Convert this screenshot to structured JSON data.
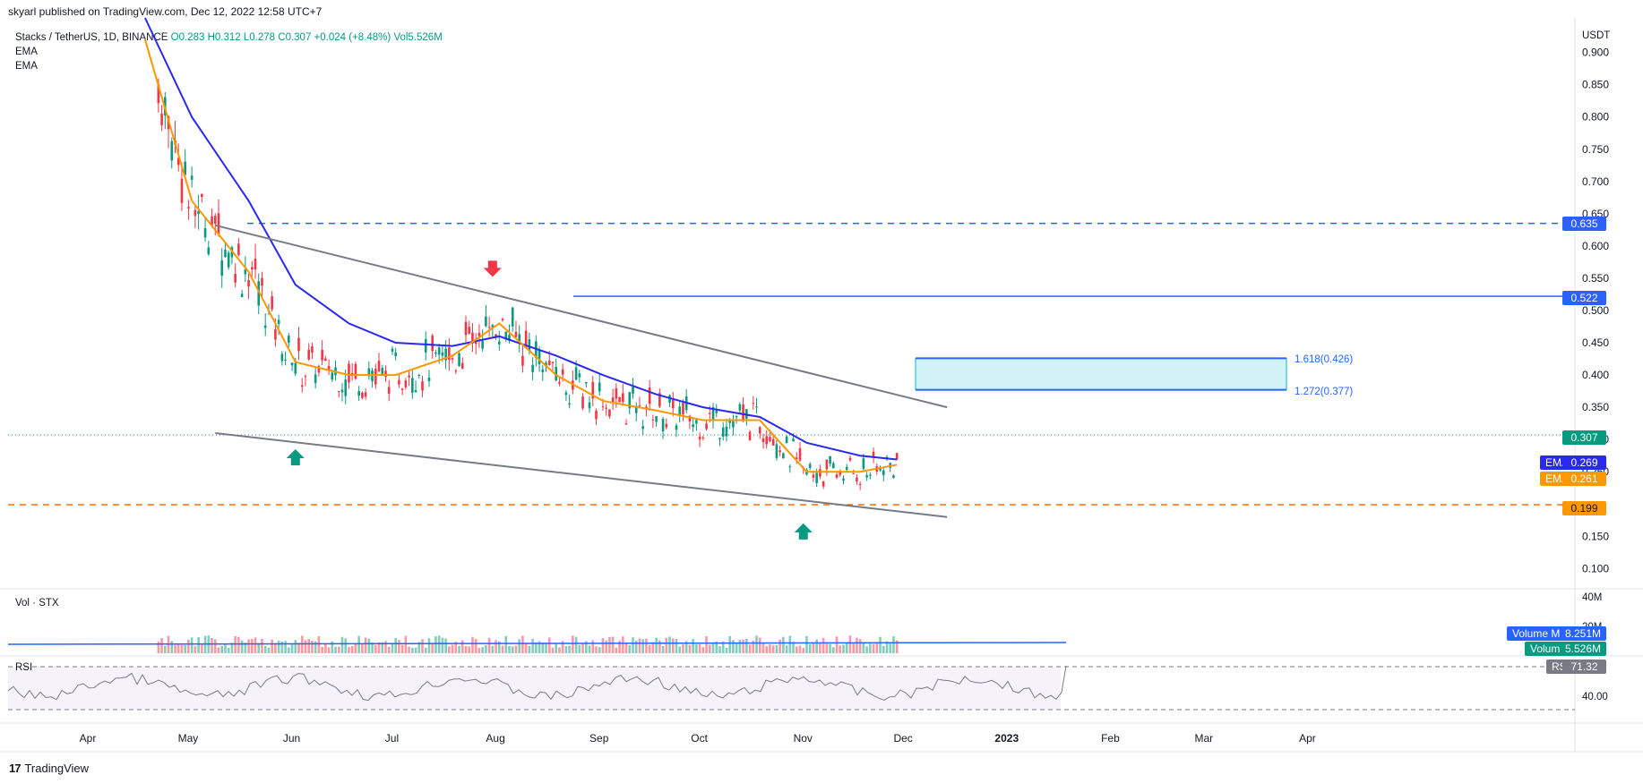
{
  "header": {
    "published": "skyarl published on TradingView.com, Dec 12, 2022 12:58 UTC+7"
  },
  "legend": {
    "symbol": "Stacks / TetherUS, 1D, BINANCE",
    "open": "O0.283",
    "high": "H0.312",
    "low": "L0.278",
    "close": "C0.307",
    "change": "+0.024 (+8.48%)",
    "vol": "Vol5.526M",
    "ind1": "EMA",
    "ind2": "EMA"
  },
  "currency": "USDT",
  "price_badges": {
    "close": "0.307",
    "ema50": "0.269",
    "ema20": "0.261",
    "level_high": "0.635",
    "level_mid": "0.522",
    "level_low": "0.199",
    "ema50_label": "EMA",
    "ema20_label": "EMA"
  },
  "fib": {
    "f1618": "1.618(0.426)",
    "f1272": "1.272(0.377)"
  },
  "volume_pane": {
    "label": "Vol · STX",
    "axis_top": "40M",
    "axis_mid": "20M",
    "ma_label": "Volume MA",
    "ma_value": "8.251M",
    "vol_label": "Volume",
    "vol_value": "5.526M"
  },
  "rsi_pane": {
    "label": "RSI",
    "axis_tick": "40.00",
    "badge_label": "RSI",
    "badge_value": "71.32"
  },
  "footer": {
    "brand": "TradingView"
  },
  "colors": {
    "up": "#089981",
    "down": "#f23645",
    "ema_fast": "#ff9800",
    "ema_slow": "#2929f0",
    "trend": "#787b86",
    "level_high": "#2962ff",
    "level_low": "#ff6d00",
    "fib_box": "#00bcd4"
  },
  "chart_data": {
    "type": "line",
    "title": "Stacks / TetherUS, 1D, BINANCE",
    "ylabel": "USDT",
    "y_ticks": [
      "0.900",
      "0.850",
      "0.800",
      "0.750",
      "0.700",
      "0.650",
      "0.600",
      "0.550",
      "0.500",
      "0.450",
      "0.400",
      "0.350",
      "0.300",
      "0.250",
      "0.150",
      "0.100"
    ],
    "ylim": [
      0.07,
      0.93
    ],
    "x_ticks": [
      "Apr",
      "May",
      "Jun",
      "Jul",
      "Aug",
      "Sep",
      "Oct",
      "Nov",
      "Dec",
      "2023",
      "Feb",
      "Mar",
      "Apr"
    ],
    "series": [
      {
        "name": "EMA",
        "x": [
          "2022-05-01",
          "2022-05-15",
          "2022-06-01",
          "2022-06-15",
          "2022-07-01",
          "2022-07-15",
          "2022-08-01",
          "2022-08-15",
          "2022-09-01",
          "2022-09-15",
          "2022-10-01",
          "2022-10-15",
          "2022-11-01",
          "2022-11-15",
          "2022-12-01",
          "2022-12-12"
        ],
        "values": [
          0.96,
          0.8,
          0.67,
          0.54,
          0.48,
          0.45,
          0.445,
          0.46,
          0.43,
          0.4,
          0.37,
          0.35,
          0.335,
          0.295,
          0.275,
          0.269
        ]
      },
      {
        "name": "EMA",
        "x": [
          "2022-05-01",
          "2022-05-15",
          "2022-06-01",
          "2022-06-15",
          "2022-07-01",
          "2022-07-15",
          "2022-08-01",
          "2022-08-15",
          "2022-09-01",
          "2022-09-15",
          "2022-10-01",
          "2022-10-15",
          "2022-11-01",
          "2022-11-15",
          "2022-12-01",
          "2022-12-12"
        ],
        "values": [
          0.92,
          0.67,
          0.56,
          0.42,
          0.4,
          0.4,
          0.43,
          0.48,
          0.4,
          0.36,
          0.345,
          0.33,
          0.33,
          0.25,
          0.25,
          0.261
        ]
      }
    ],
    "levels": [
      {
        "label": "0.635",
        "value": 0.635,
        "style": "dashed"
      },
      {
        "label": "0.522",
        "value": 0.522,
        "style": "solid"
      },
      {
        "label": "0.199",
        "value": 0.199,
        "style": "dashed"
      }
    ],
    "fib_zone": {
      "low": 0.377,
      "high": 0.426
    },
    "trendlines": [
      {
        "from": [
          "2022-05-22",
          0.632
        ],
        "to": [
          "2022-12-27",
          0.35
        ]
      },
      {
        "from": [
          "2022-05-22",
          0.31
        ],
        "to": [
          "2022-12-27",
          0.18
        ]
      }
    ],
    "markers": [
      {
        "type": "arrow-down",
        "date": "2022-08-13",
        "value": 0.555
      },
      {
        "type": "arrow-up",
        "date": "2022-06-15",
        "value": 0.285
      },
      {
        "type": "arrow-up",
        "date": "2022-11-14",
        "value": 0.17
      }
    ],
    "last_close": 0.307,
    "volume_ma": "8.251M",
    "volume_last": "5.526M",
    "rsi_last": 71.32
  }
}
